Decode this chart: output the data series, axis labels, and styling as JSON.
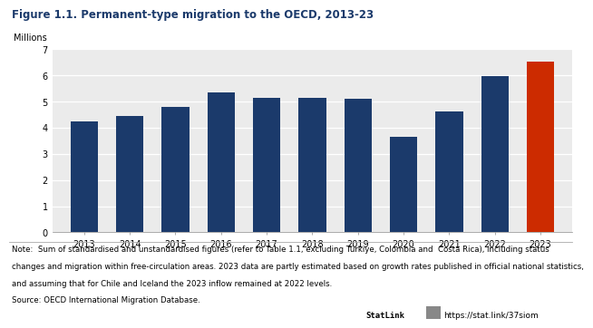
{
  "title": "Figure 1.1. Permanent-type migration to the OECD, 2013-23",
  "ylabel": "Millions",
  "years": [
    2013,
    2014,
    2015,
    2016,
    2017,
    2018,
    2019,
    2020,
    2021,
    2022,
    2023
  ],
  "values": [
    4.22,
    4.43,
    4.78,
    5.34,
    5.12,
    5.14,
    5.11,
    3.65,
    4.63,
    5.97,
    6.52
  ],
  "bar_colors": [
    "#1b3a6b",
    "#1b3a6b",
    "#1b3a6b",
    "#1b3a6b",
    "#1b3a6b",
    "#1b3a6b",
    "#1b3a6b",
    "#1b3a6b",
    "#1b3a6b",
    "#1b3a6b",
    "#cc2b00"
  ],
  "ylim": [
    0,
    7
  ],
  "yticks": [
    0,
    1,
    2,
    3,
    4,
    5,
    6,
    7
  ],
  "plot_bg": "#ebebeb",
  "figure_bg": "#ffffff",
  "title_color": "#1b3a6b",
  "title_fontsize": 8.5,
  "axis_fontsize": 7.0,
  "ylabel_fontsize": 7.0,
  "note_fontsize": 6.2,
  "note_line1": "Note:  Sum of standardised and unstandardised figures (refer to Table 1.1, excluding Türkiye, Colombia and  Costa Rica), including status",
  "note_line2": "changes and migration within free-circulation areas. 2023 data are partly estimated based on growth rates published in official national statistics,",
  "note_line3": "and assuming that for Chile and Iceland the 2023 inflow remained at 2022 levels.",
  "source_line": "Source: OECD International Migration Database.",
  "statlink_label": "StatLink",
  "statlink_url": "https://stat.link/37siom"
}
